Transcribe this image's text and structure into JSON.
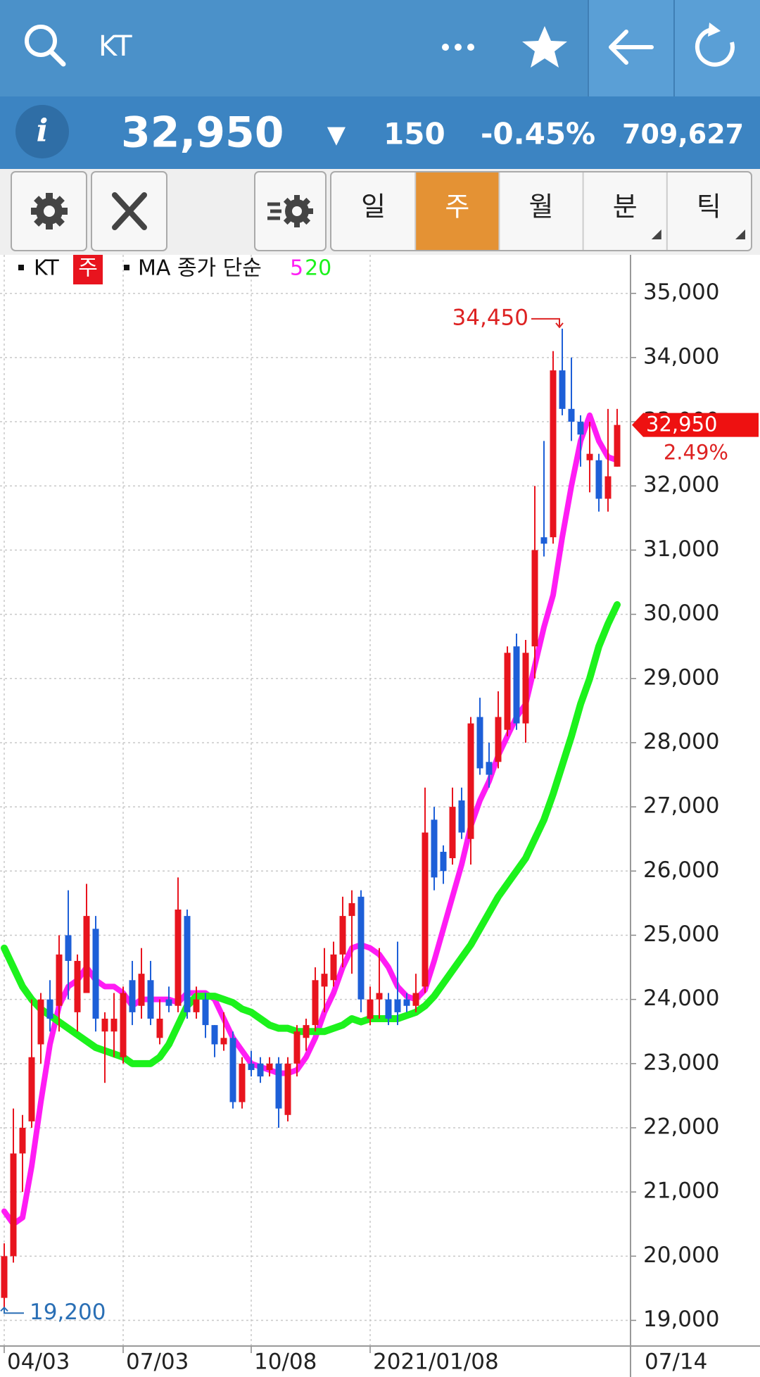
{
  "header": {
    "search_text": "KT"
  },
  "quote": {
    "price": "32,950",
    "direction": "▼",
    "change": "150",
    "change_pct": "-0.45%",
    "volume": "709,627"
  },
  "periods": [
    "일",
    "주",
    "월",
    "분",
    "틱"
  ],
  "selected_period_index": 1,
  "chart_data": {
    "type": "candlestick",
    "legend_symbol": "KT",
    "legend_period": "주",
    "legend_ma_label": "MA 종가 단순",
    "categories": [
      "04/03",
      null,
      null,
      null,
      null,
      null,
      null,
      null,
      null,
      null,
      null,
      null,
      null,
      "07/03",
      null,
      null,
      null,
      null,
      null,
      null,
      null,
      null,
      null,
      null,
      null,
      null,
      null,
      "10/08",
      null,
      null,
      null,
      null,
      null,
      null,
      null,
      null,
      null,
      null,
      null,
      null,
      "2021/01/08",
      null,
      null,
      null,
      null,
      null,
      null,
      null,
      null,
      null,
      null,
      null,
      null,
      null,
      null,
      null,
      null,
      null,
      null,
      null,
      null,
      null,
      null,
      null,
      null,
      null,
      null,
      null
    ],
    "last_date": "07/14",
    "candles": {
      "up_color": "#e8141e",
      "down_color": "#1d5fd8",
      "open": [
        19350,
        20000,
        21600,
        22100,
        23300,
        24000,
        23900,
        25000,
        23800,
        24100,
        25100,
        23500,
        23500,
        23100,
        24300,
        23900,
        24300,
        23400,
        24000,
        23900,
        25300,
        23800,
        24000,
        23600,
        23300,
        23400,
        22400,
        23000,
        23000,
        22900,
        23000,
        22200,
        23000,
        23400,
        23600,
        24200,
        24300,
        24700,
        25300,
        25600,
        23700,
        24000,
        24000,
        24000,
        24000,
        23900,
        24200,
        26800,
        26300,
        26200,
        27100,
        26500,
        28400,
        27700,
        27700,
        28200,
        29500,
        28300,
        29500,
        31200,
        31200,
        33800,
        33200,
        33000,
        32400,
        32400,
        31800,
        32300
      ],
      "high": [
        20200,
        22300,
        22200,
        24000,
        24100,
        24300,
        25000,
        25700,
        24700,
        25800,
        25300,
        23800,
        24100,
        24200,
        24600,
        24800,
        24600,
        24000,
        24200,
        25900,
        25400,
        24200,
        24100,
        23600,
        23800,
        23500,
        23100,
        23200,
        23100,
        23100,
        23100,
        23100,
        23600,
        23700,
        24500,
        24800,
        24900,
        25600,
        25700,
        25700,
        24200,
        24800,
        24100,
        24900,
        24100,
        24400,
        27300,
        27000,
        26400,
        27300,
        27300,
        28400,
        28700,
        28000,
        28800,
        29500,
        29700,
        29600,
        32000,
        32700,
        34100,
        34450,
        34000,
        33100,
        33000,
        32500,
        33200,
        33200
      ],
      "low": [
        19200,
        19900,
        21000,
        22000,
        23000,
        23500,
        23500,
        24000,
        23500,
        24100,
        23500,
        22700,
        23100,
        23000,
        23600,
        23700,
        23600,
        23300,
        23800,
        23800,
        23700,
        23700,
        23400,
        23100,
        23200,
        22300,
        22300,
        22800,
        22700,
        22800,
        22000,
        22100,
        22800,
        23200,
        23500,
        23800,
        24200,
        24500,
        24400,
        23800,
        23600,
        23700,
        23600,
        23600,
        23800,
        23800,
        24100,
        25700,
        25800,
        26100,
        26500,
        26100,
        27500,
        27300,
        27600,
        28100,
        28200,
        28000,
        29000,
        30900,
        31100,
        33100,
        32700,
        32300,
        31900,
        31600,
        31600,
        32300
      ],
      "close": [
        20000,
        21600,
        22000,
        23100,
        24000,
        23700,
        24700,
        24600,
        24600,
        25300,
        23700,
        23700,
        23700,
        24100,
        23800,
        24400,
        23700,
        23700,
        23900,
        25400,
        23800,
        24000,
        23600,
        23300,
        23400,
        22400,
        23000,
        22900,
        22800,
        23000,
        22300,
        23000,
        23500,
        23600,
        24300,
        24400,
        24700,
        25300,
        25500,
        24000,
        24000,
        24100,
        23700,
        23800,
        23900,
        24100,
        26600,
        25900,
        26000,
        27000,
        26600,
        28300,
        27600,
        27500,
        28400,
        29400,
        28300,
        29400,
        31000,
        31100,
        33800,
        33200,
        33000,
        32800,
        32500,
        31800,
        32150,
        32950
      ]
    },
    "series": [
      {
        "name": "5",
        "color": "#ff1cf4",
        "values": [
          20700,
          20500,
          20600,
          21400,
          22400,
          23300,
          23900,
          24200,
          24300,
          24500,
          24300,
          24200,
          24200,
          24100,
          23900,
          24000,
          24000,
          24000,
          24000,
          23950,
          24100,
          24100,
          24100,
          24000,
          23700,
          23400,
          23200,
          23000,
          22950,
          22900,
          22850,
          22850,
          22900,
          23100,
          23400,
          23800,
          24100,
          24500,
          24800,
          24850,
          24800,
          24700,
          24500,
          24200,
          24050,
          24000,
          24150,
          24600,
          25100,
          25600,
          26100,
          26700,
          27100,
          27400,
          27800,
          28100,
          28400,
          28600,
          29200,
          29800,
          30300,
          31200,
          32000,
          32700,
          33100,
          32700,
          32450,
          32400
        ]
      },
      {
        "name": "20",
        "color": "#1cf21c",
        "values": [
          24800,
          24500,
          24200,
          24000,
          23850,
          23750,
          23650,
          23550,
          23450,
          23350,
          23250,
          23200,
          23150,
          23100,
          23000,
          23000,
          23000,
          23100,
          23300,
          23600,
          23900,
          24050,
          24050,
          24050,
          24000,
          23950,
          23850,
          23800,
          23700,
          23600,
          23550,
          23550,
          23500,
          23500,
          23500,
          23500,
          23550,
          23600,
          23700,
          23650,
          23700,
          23700,
          23700,
          23700,
          23750,
          23800,
          23900,
          24050,
          24250,
          24450,
          24650,
          24850,
          25100,
          25350,
          25600,
          25800,
          26000,
          26200,
          26500,
          26800,
          27200,
          27650,
          28100,
          28600,
          29000,
          29500,
          29850,
          30150
        ]
      }
    ],
    "ylim": [
      18600,
      35600
    ],
    "yticks": [
      {
        "value": 19000,
        "label": "19,000"
      },
      {
        "value": 20000,
        "label": "20,000"
      },
      {
        "value": 21000,
        "label": "21,000"
      },
      {
        "value": 22000,
        "label": "22,000"
      },
      {
        "value": 23000,
        "label": "23,000"
      },
      {
        "value": 24000,
        "label": "24,000"
      },
      {
        "value": 25000,
        "label": "25,000"
      },
      {
        "value": 26000,
        "label": "26,000"
      },
      {
        "value": 27000,
        "label": "27,000"
      },
      {
        "value": 28000,
        "label": "28,000"
      },
      {
        "value": 29000,
        "label": "29,000"
      },
      {
        "value": 30000,
        "label": "30,000"
      },
      {
        "value": 31000,
        "label": "31,000"
      },
      {
        "value": 32000,
        "label": "32,000"
      },
      {
        "value": 33000,
        "label": "33,000"
      },
      {
        "value": 34000,
        "label": "34,000"
      },
      {
        "value": 35000,
        "label": "35,000"
      }
    ],
    "grid": true,
    "high_marker": {
      "value": 34450,
      "label": "34,450"
    },
    "low_marker": {
      "value": 19200,
      "label": "19,200"
    },
    "last_price": {
      "value": 32950,
      "label": "32,950"
    },
    "last_change": "2.49%"
  }
}
